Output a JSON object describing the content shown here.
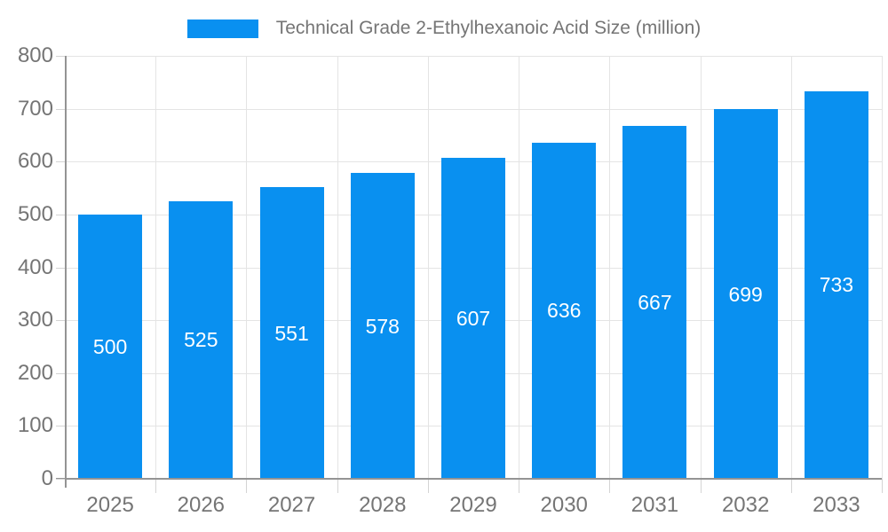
{
  "chart_data": {
    "type": "bar",
    "title": "Technical Grade 2-Ethylhexanoic Acid Size (million)",
    "legend_entries": [
      "Technical Grade 2-Ethylhexanoic Acid Size (million)"
    ],
    "legend_position": "top",
    "categories": [
      "2025",
      "2026",
      "2027",
      "2028",
      "2029",
      "2030",
      "2031",
      "2032",
      "2033"
    ],
    "values": [
      500,
      525,
      551,
      578,
      607,
      636,
      667,
      699,
      733
    ],
    "bar_value_labels": [
      "500",
      "525",
      "551",
      "578",
      "607",
      "636",
      "667",
      "699",
      "733"
    ],
    "xlabel": "",
    "ylabel": "",
    "ylim": [
      0,
      800
    ],
    "ytick_step": 100,
    "ytick_labels": [
      "0",
      "100",
      "200",
      "300",
      "400",
      "500",
      "600",
      "700",
      "800"
    ],
    "grid": true,
    "colors": {
      "bar": "#0990f0",
      "bar_label": "#ffffff",
      "axis_line": "#949494",
      "gridline": "#e4e4e4",
      "tick": "#d4d4d4",
      "text": "#757575",
      "background": "#ffffff"
    }
  }
}
